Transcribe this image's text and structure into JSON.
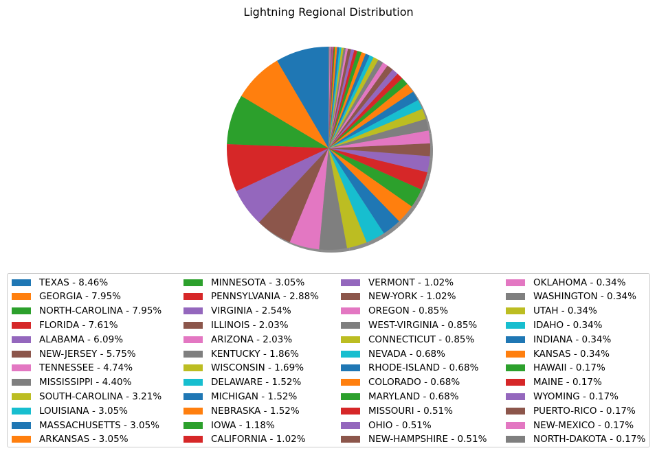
{
  "chart_data": {
    "type": "pie",
    "title": "Lightning Regional Distribution",
    "shadow": true,
    "start_angle_deg": 90,
    "direction": "counterclockwise",
    "legend_location": "bottom",
    "legend_columns": 4,
    "palette": [
      "#1f77b4",
      "#ff7f0e",
      "#2ca02c",
      "#d62728",
      "#9467bd",
      "#8c564b",
      "#e377c2",
      "#7f7f7f",
      "#bcbd22",
      "#17becf"
    ],
    "slices": [
      {
        "label": "TEXAS - 8.46%",
        "value": 8.46
      },
      {
        "label": "GEORGIA - 7.95%",
        "value": 7.95
      },
      {
        "label": "NORTH-CAROLINA - 7.95%",
        "value": 7.95
      },
      {
        "label": "FLORIDA - 7.61%",
        "value": 7.61
      },
      {
        "label": "ALABAMA - 6.09%",
        "value": 6.09
      },
      {
        "label": "NEW-JERSEY - 5.75%",
        "value": 5.75
      },
      {
        "label": "TENNESSEE - 4.74%",
        "value": 4.74
      },
      {
        "label": "MISSISSIPPI - 4.40%",
        "value": 4.4
      },
      {
        "label": "SOUTH-CAROLINA - 3.21%",
        "value": 3.21
      },
      {
        "label": "LOUISIANA - 3.05%",
        "value": 3.05
      },
      {
        "label": "MASSACHUSETTS - 3.05%",
        "value": 3.05
      },
      {
        "label": "ARKANSAS - 3.05%",
        "value": 3.05
      },
      {
        "label": "MINNESOTA - 3.05%",
        "value": 3.05
      },
      {
        "label": "PENNSYLVANIA - 2.88%",
        "value": 2.88
      },
      {
        "label": "VIRGINIA - 2.54%",
        "value": 2.54
      },
      {
        "label": "ILLINOIS - 2.03%",
        "value": 2.03
      },
      {
        "label": "ARIZONA - 2.03%",
        "value": 2.03
      },
      {
        "label": "KENTUCKY - 1.86%",
        "value": 1.86
      },
      {
        "label": "WISCONSIN - 1.69%",
        "value": 1.69
      },
      {
        "label": "DELAWARE - 1.52%",
        "value": 1.52
      },
      {
        "label": "MICHIGAN - 1.52%",
        "value": 1.52
      },
      {
        "label": "NEBRASKA - 1.52%",
        "value": 1.52
      },
      {
        "label": "IOWA - 1.18%",
        "value": 1.18
      },
      {
        "label": "CALIFORNIA - 1.02%",
        "value": 1.02
      },
      {
        "label": "VERMONT - 1.02%",
        "value": 1.02
      },
      {
        "label": "NEW-YORK - 1.02%",
        "value": 1.02
      },
      {
        "label": "OREGON - 0.85%",
        "value": 0.85
      },
      {
        "label": "WEST-VIRGINIA - 0.85%",
        "value": 0.85
      },
      {
        "label": "CONNECTICUT - 0.85%",
        "value": 0.85
      },
      {
        "label": "NEVADA - 0.68%",
        "value": 0.68
      },
      {
        "label": "RHODE-ISLAND - 0.68%",
        "value": 0.68
      },
      {
        "label": "COLORADO - 0.68%",
        "value": 0.68
      },
      {
        "label": "MARYLAND - 0.68%",
        "value": 0.68
      },
      {
        "label": "MISSOURI - 0.51%",
        "value": 0.51
      },
      {
        "label": "OHIO - 0.51%",
        "value": 0.51
      },
      {
        "label": "NEW-HAMPSHIRE - 0.51%",
        "value": 0.51
      },
      {
        "label": "OKLAHOMA - 0.34%",
        "value": 0.34
      },
      {
        "label": "WASHINGTON - 0.34%",
        "value": 0.34
      },
      {
        "label": "UTAH - 0.34%",
        "value": 0.34
      },
      {
        "label": "IDAHO - 0.34%",
        "value": 0.34
      },
      {
        "label": "INDIANA - 0.34%",
        "value": 0.34
      },
      {
        "label": "KANSAS - 0.34%",
        "value": 0.34
      },
      {
        "label": "HAWAII - 0.17%",
        "value": 0.17
      },
      {
        "label": "MAINE - 0.17%",
        "value": 0.17
      },
      {
        "label": "WYOMING - 0.17%",
        "value": 0.17
      },
      {
        "label": "PUERTO-RICO - 0.17%",
        "value": 0.17
      },
      {
        "label": "NEW-MEXICO - 0.17%",
        "value": 0.17
      },
      {
        "label": "NORTH-DAKOTA - 0.17%",
        "value": 0.17
      }
    ]
  }
}
